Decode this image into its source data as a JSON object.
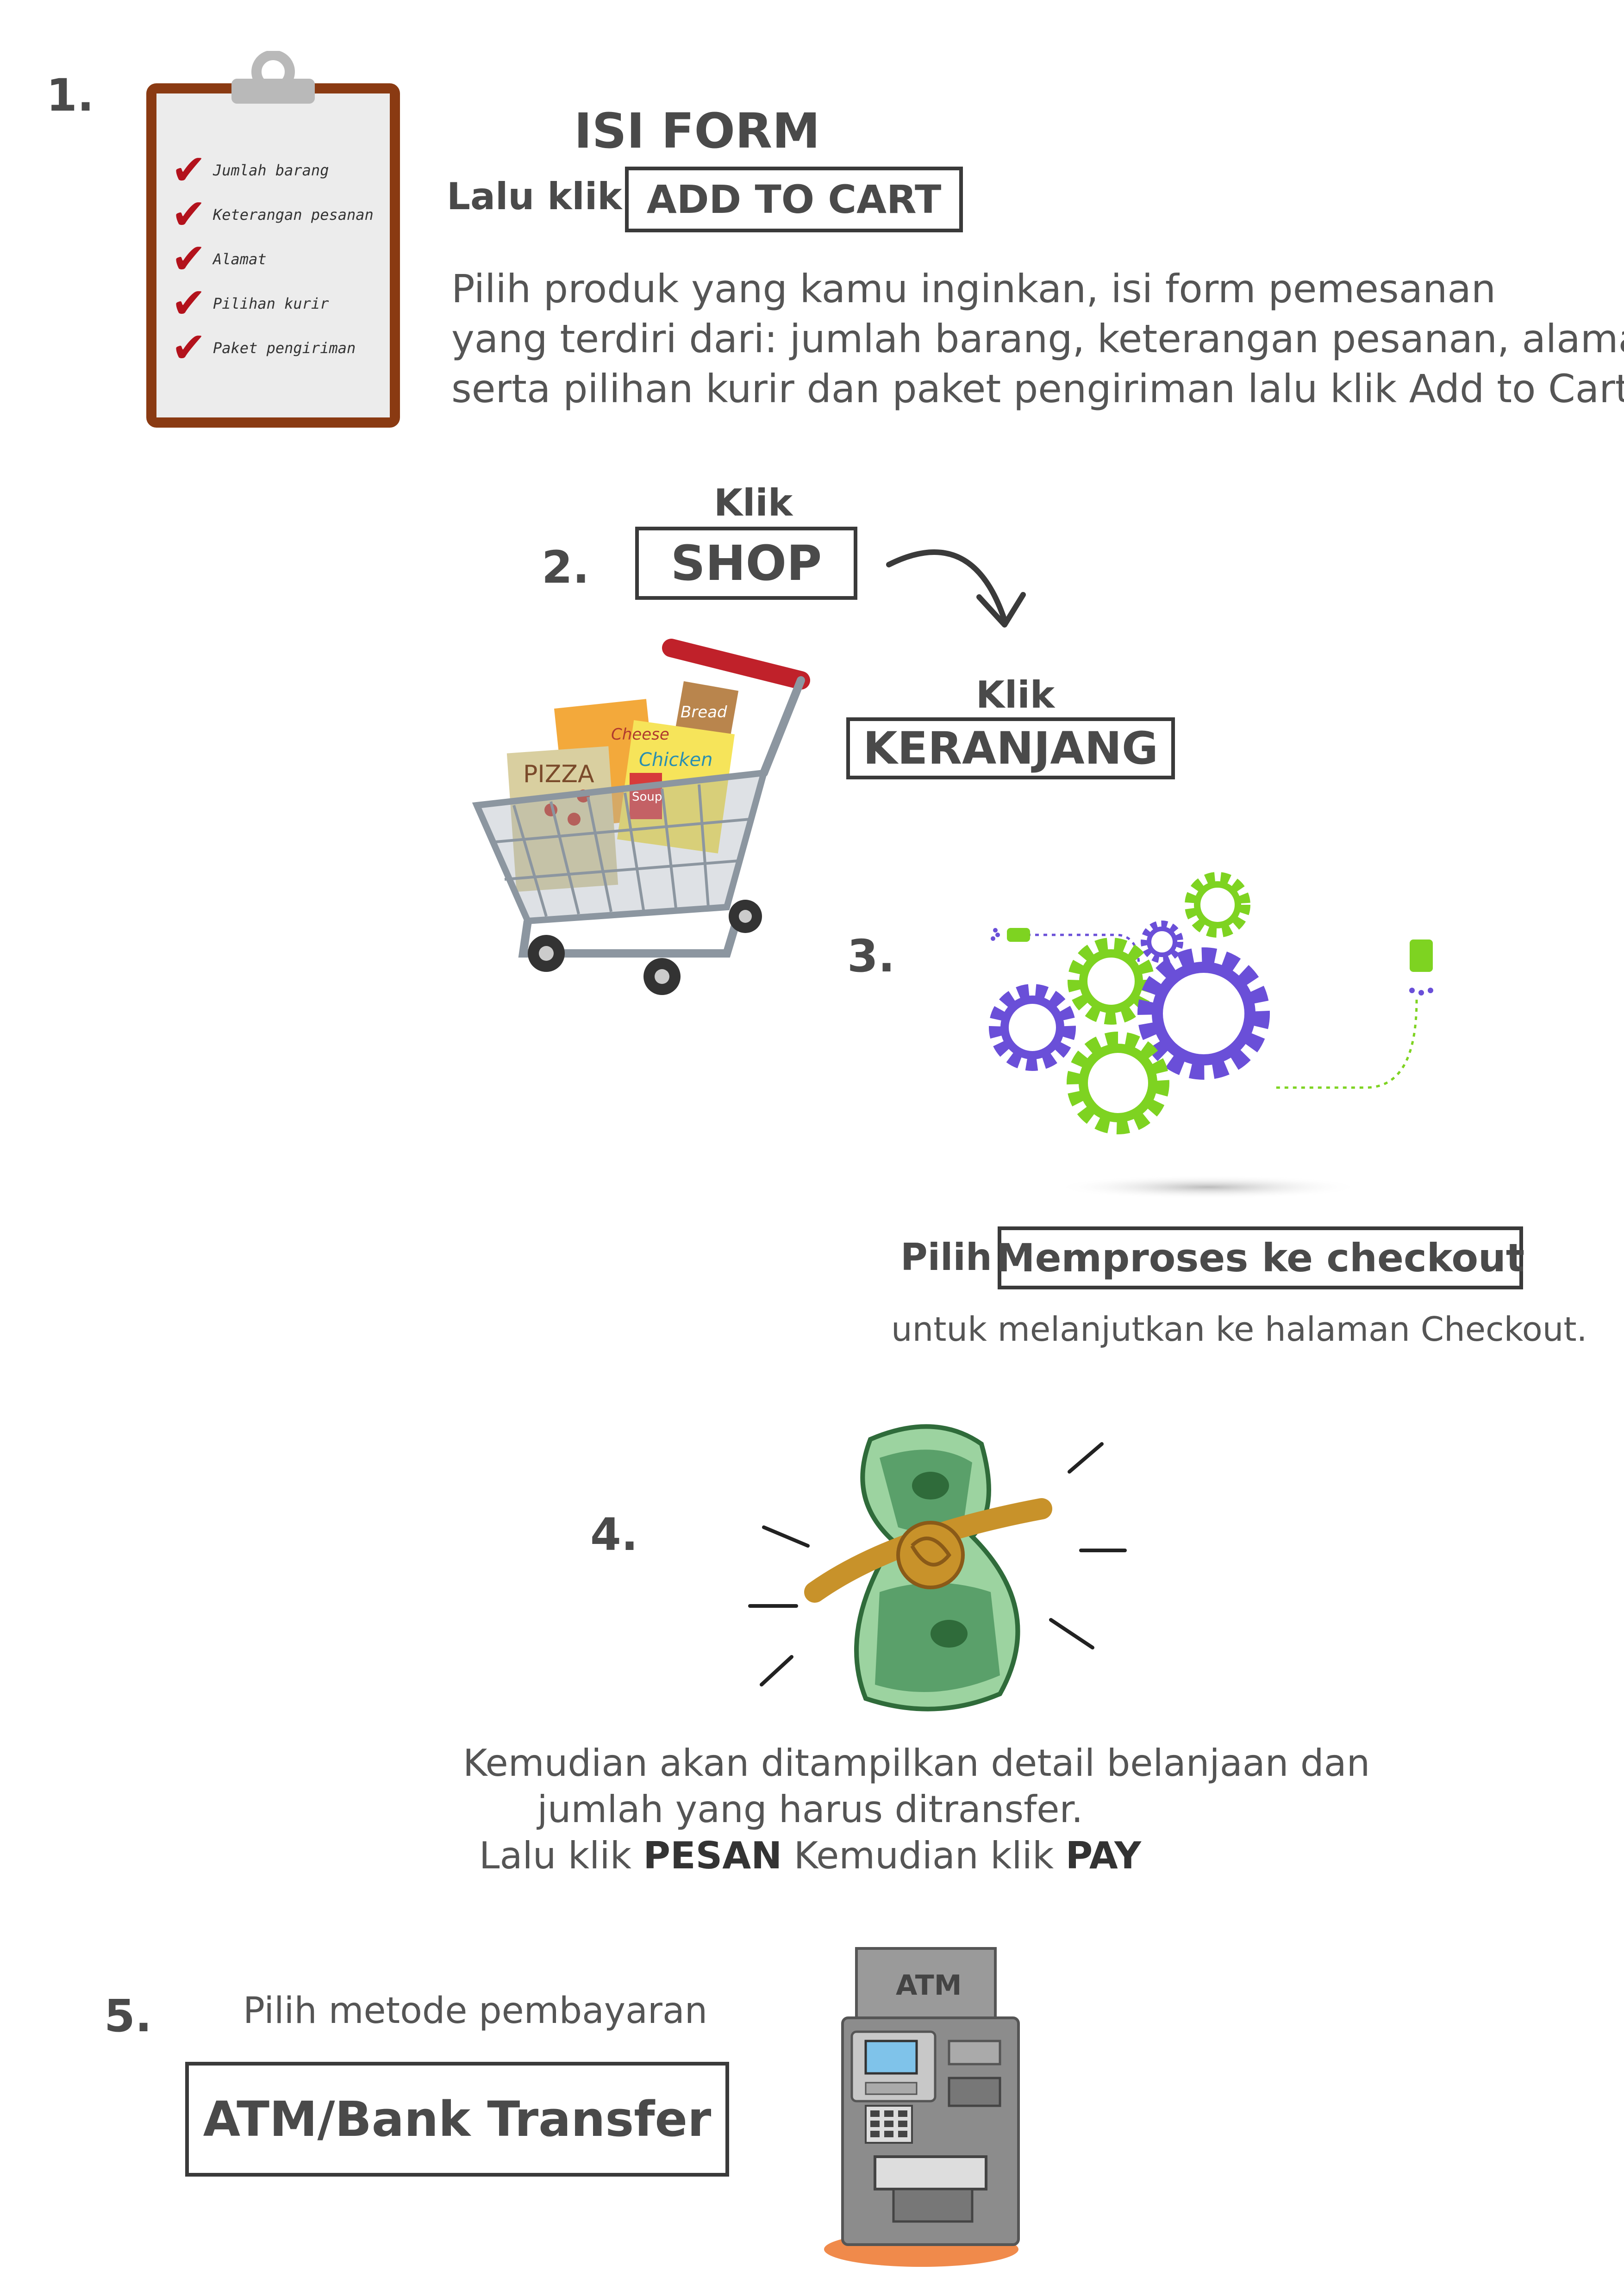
{
  "step1": {
    "number": "1.",
    "heading": "ISI FORM",
    "prefix": "Lalu klik",
    "button": "ADD TO CART",
    "description": [
      "Pilih produk yang kamu inginkan, isi form pemesanan",
      "yang terdiri dari: jumlah barang, keterangan pesanan, alamat,",
      "serta pilihan kurir dan paket pengiriman lalu klik Add to Cart."
    ],
    "checklist": [
      "Jumlah barang",
      "Keterangan pesanan",
      "Alamat",
      "Pilihan kurir",
      "Paket pengiriman"
    ]
  },
  "step2": {
    "number": "2.",
    "label_top": "Klik",
    "button": "SHOP",
    "label_second": "Klik",
    "button_second": "KERANJANG",
    "cart_labels": [
      "Cheese",
      "Bread",
      "Chicken",
      "Soup",
      "PIZZA"
    ]
  },
  "step3": {
    "number": "3.",
    "prefix": "Pilih",
    "button": "Memproses ke checkout",
    "caption": "untuk melanjutkan ke halaman Checkout."
  },
  "step4": {
    "number": "4.",
    "line1": "Kemudian akan ditampilkan detail belanjaan dan",
    "line2": "jumlah yang harus ditransfer.",
    "line3_a": "Lalu klik ",
    "line3_b": "PESAN",
    "line3_c": " Kemudian klik ",
    "line3_d": "PAY"
  },
  "step5": {
    "number": "5.",
    "label": "Pilih metode pembayaran",
    "button": "ATM/Bank Transfer",
    "atm_label": "ATM"
  },
  "colors": {
    "text": "#4a4a4a",
    "border": "#3a3a3a",
    "check_red": "#b3121c",
    "clipboard_brown": "#8a3a12",
    "gear_purple": "#6a4fd8",
    "gear_green": "#7ed321",
    "money_green": "#5aa06a",
    "rope": "#c8922a",
    "atm_gray": "#8c8c8c",
    "atm_base_orange": "#f08a4b"
  }
}
